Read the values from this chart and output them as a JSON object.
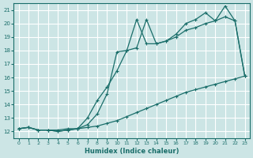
{
  "xlabel": "Humidex (Indice chaleur)",
  "xlim": [
    -0.5,
    23.5
  ],
  "ylim": [
    11.5,
    21.5
  ],
  "yticks": [
    12,
    13,
    14,
    15,
    16,
    17,
    18,
    19,
    20,
    21
  ],
  "xticks": [
    0,
    1,
    2,
    3,
    4,
    5,
    6,
    7,
    8,
    9,
    10,
    11,
    12,
    13,
    14,
    15,
    16,
    17,
    18,
    19,
    20,
    21,
    22,
    23
  ],
  "bg_color": "#cce5e5",
  "grid_color": "#ffffff",
  "line_color": "#1a6e6a",
  "line1_x": [
    0,
    1,
    2,
    3,
    4,
    5,
    6,
    7,
    8,
    9,
    10,
    11,
    12,
    13,
    14,
    15,
    16,
    17,
    18,
    19,
    20,
    21,
    22,
    23
  ],
  "line1_y": [
    12.2,
    12.3,
    12.1,
    12.1,
    12.1,
    12.2,
    12.2,
    12.3,
    12.4,
    12.6,
    12.8,
    13.1,
    13.4,
    13.7,
    14.0,
    14.3,
    14.6,
    14.9,
    15.1,
    15.3,
    15.5,
    15.7,
    15.9,
    16.1
  ],
  "line2_x": [
    0,
    1,
    2,
    3,
    4,
    5,
    6,
    7,
    8,
    9,
    10,
    11,
    12,
    13,
    14,
    15,
    16,
    17,
    18,
    19,
    20,
    21,
    22,
    23
  ],
  "line2_y": [
    12.2,
    12.3,
    12.1,
    12.1,
    12.0,
    12.1,
    12.2,
    13.0,
    14.3,
    15.3,
    16.5,
    18.0,
    20.3,
    18.5,
    18.5,
    18.7,
    19.0,
    19.5,
    19.7,
    20.0,
    20.2,
    20.5,
    20.2,
    16.1
  ],
  "line3_x": [
    0,
    1,
    2,
    3,
    4,
    5,
    6,
    7,
    8,
    9,
    10,
    11,
    12,
    13,
    14,
    15,
    16,
    17,
    18,
    19,
    20,
    21,
    22,
    23
  ],
  "line3_y": [
    12.2,
    12.3,
    12.1,
    12.1,
    12.0,
    12.1,
    12.2,
    12.5,
    13.3,
    14.8,
    17.9,
    18.0,
    18.2,
    20.3,
    18.5,
    18.7,
    19.2,
    20.0,
    20.3,
    20.8,
    20.2,
    21.3,
    20.2,
    16.1
  ]
}
